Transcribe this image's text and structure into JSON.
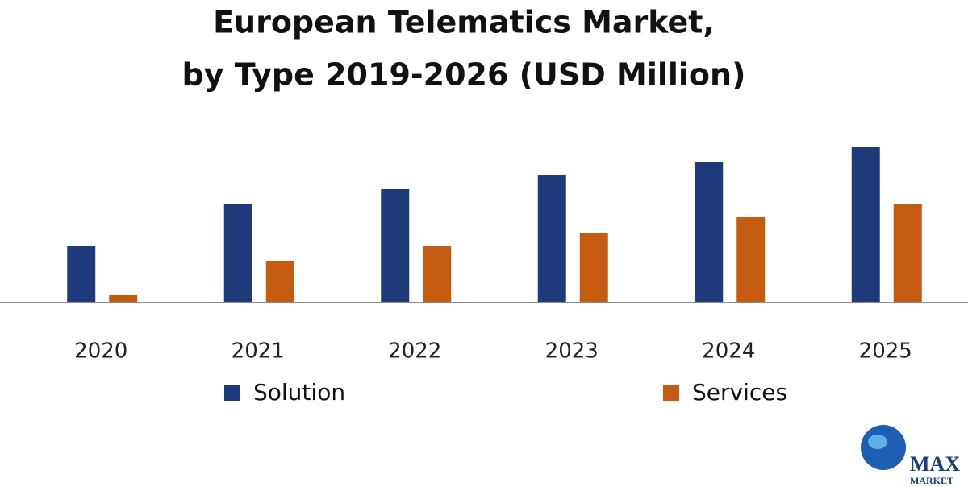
{
  "chart_data": {
    "type": "bar",
    "title": [
      "European Telematics Market,",
      "by Type 2019-2026 (USD Million)"
    ],
    "categories": [
      "2020",
      "2021",
      "2022",
      "2023",
      "2024",
      "2025"
    ],
    "series": [
      {
        "name": "Solution",
        "color": "#1f3a7a",
        "values": [
          70,
          122,
          141,
          158,
          174,
          193
        ]
      },
      {
        "name": "Services",
        "color": "#c55a11",
        "values": [
          9,
          51,
          70,
          86,
          106,
          122
        ]
      }
    ],
    "ylim": [
      0,
      200
    ],
    "logo": [
      "MAX",
      "MARKET"
    ]
  }
}
